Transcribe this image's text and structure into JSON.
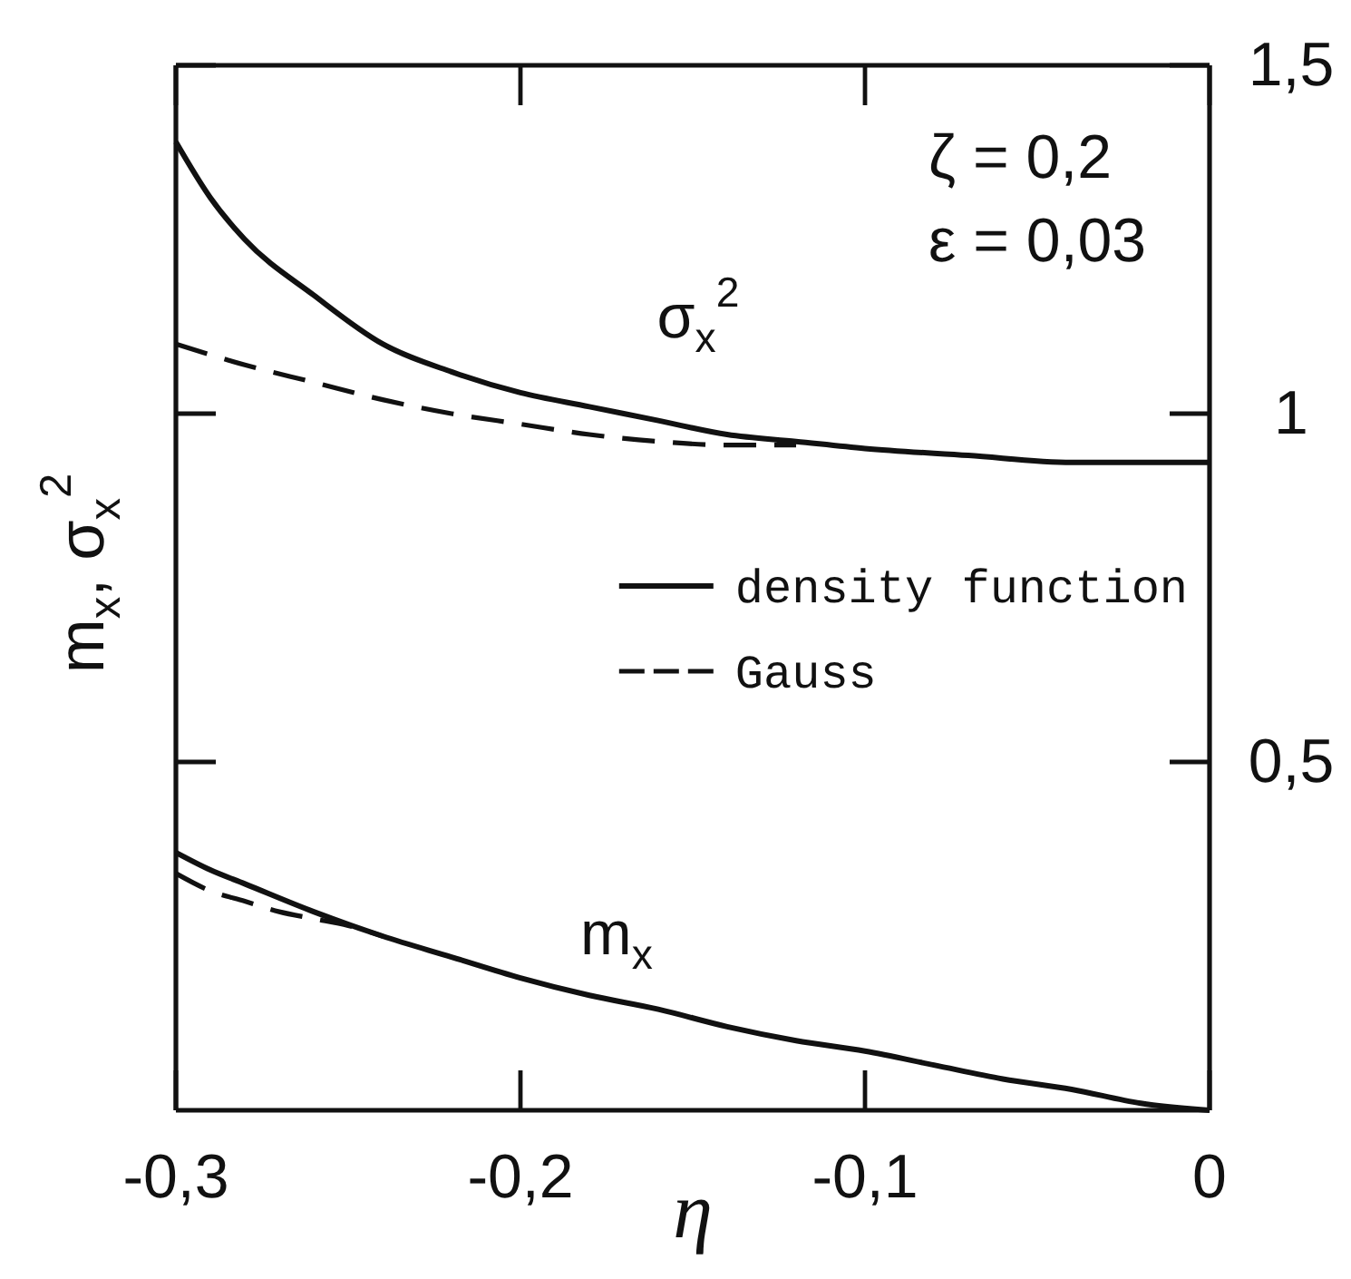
{
  "chart_data": {
    "type": "line",
    "xlabel": "η",
    "ylabel": "m$_{x}$, σ$_{x}$$^{2}$",
    "xlim": [
      -0.3,
      0
    ],
    "xticks": [
      {
        "value": -0.3,
        "label": "-0,3"
      },
      {
        "value": -0.2,
        "label": "-0,2"
      },
      {
        "value": -0.1,
        "label": "-0,1"
      },
      0
    ],
    "ylim": [
      0,
      1.5
    ],
    "yticks": [
      {
        "value": 0.5,
        "label": "0,5"
      },
      1,
      {
        "value": 1.5,
        "label": "1,5"
      }
    ],
    "legend": "right",
    "series": [
      {
        "name": "density function",
        "color": "#111111",
        "line_style": "solid",
        "x": [
          -0.3,
          -0.29,
          -0.28,
          -0.26,
          -0.24,
          -0.22,
          -0.2,
          -0.18,
          -0.16,
          -0.14,
          -0.12,
          -0.1,
          -0.07,
          -0.04,
          0
        ],
        "values": [
          1.39,
          1.31,
          1.25,
          1.17,
          1.1,
          1.06,
          1.03,
          1.01,
          0.99,
          0.97,
          0.96,
          0.95,
          0.94,
          0.93,
          0.93
        ]
      },
      {
        "name": "Gauss",
        "color": "#111111",
        "line_style": "dashed",
        "x": [
          -0.3,
          -0.28,
          -0.26,
          -0.24,
          -0.22,
          -0.2,
          -0.18,
          -0.16,
          -0.14,
          -0.12
        ],
        "values": [
          1.1,
          1.07,
          1.045,
          1.02,
          1.0,
          0.985,
          0.97,
          0.96,
          0.955,
          0.955
        ]
      },
      {
        "color": "#111111",
        "line_style": "solid",
        "x": [
          -0.3,
          -0.29,
          -0.28,
          -0.26,
          -0.24,
          -0.22,
          -0.2,
          -0.18,
          -0.16,
          -0.14,
          -0.12,
          -0.1,
          -0.08,
          -0.06,
          -0.04,
          -0.02,
          0
        ],
        "values": [
          0.37,
          0.345,
          0.325,
          0.285,
          0.25,
          0.22,
          0.19,
          0.165,
          0.145,
          0.12,
          0.1,
          0.085,
          0.065,
          0.045,
          0.03,
          0.01,
          0
        ]
      },
      {
        "color": "#111111",
        "line_style": "dashed",
        "x": [
          -0.3,
          -0.29,
          -0.28,
          -0.27,
          -0.26,
          -0.25,
          -0.24
        ],
        "values": [
          0.34,
          0.315,
          0.3,
          0.285,
          0.275,
          0.265,
          0.25
        ]
      }
    ],
    "annotations": [
      "ζ = 0,2",
      "ε = 0,03",
      "σ$_{x}$$^{2}$",
      "m$_{x}$"
    ]
  }
}
